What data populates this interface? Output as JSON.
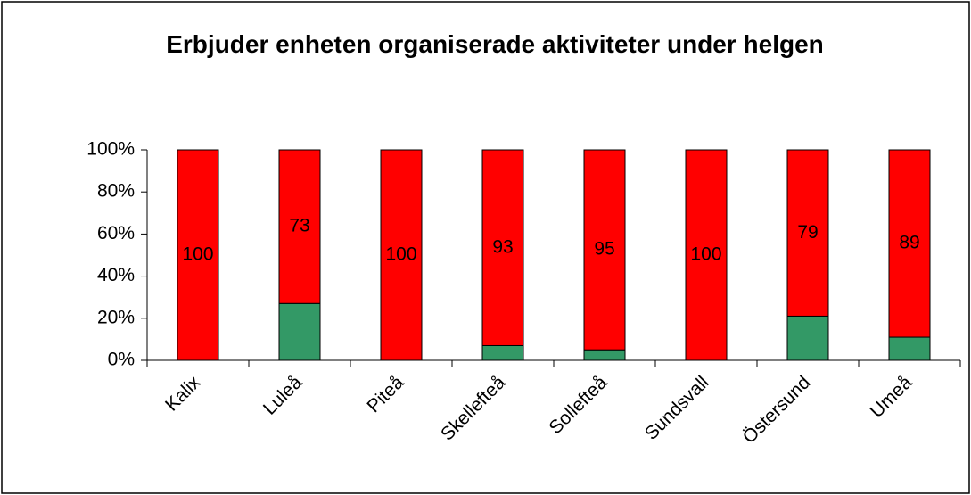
{
  "chart_data": {
    "type": "stacked_bar_100",
    "title": "Erbjuder enheten organiserade aktiviteter under helgen",
    "categories": [
      "Kalix",
      "Luleå",
      "Piteå",
      "Skellefteå",
      "Sollefteå",
      "Sundsvall",
      "Östersund",
      "Umeå"
    ],
    "series": [
      {
        "color": "#339966",
        "values": [
          0,
          27,
          0,
          7,
          5,
          0,
          21,
          11
        ],
        "show_labels": false
      },
      {
        "color": "#ff0000",
        "values": [
          100,
          73,
          100,
          93,
          95,
          100,
          79,
          89
        ],
        "show_labels": true
      }
    ],
    "ylim": [
      0,
      100
    ],
    "yticks": [
      {
        "value": 0,
        "label": "0%"
      },
      {
        "value": 20,
        "label": "20%"
      },
      {
        "value": 40,
        "label": "40%"
      },
      {
        "value": 60,
        "label": "60%"
      },
      {
        "value": 80,
        "label": "80%"
      },
      {
        "value": 100,
        "label": "100%"
      }
    ],
    "grid": false
  }
}
